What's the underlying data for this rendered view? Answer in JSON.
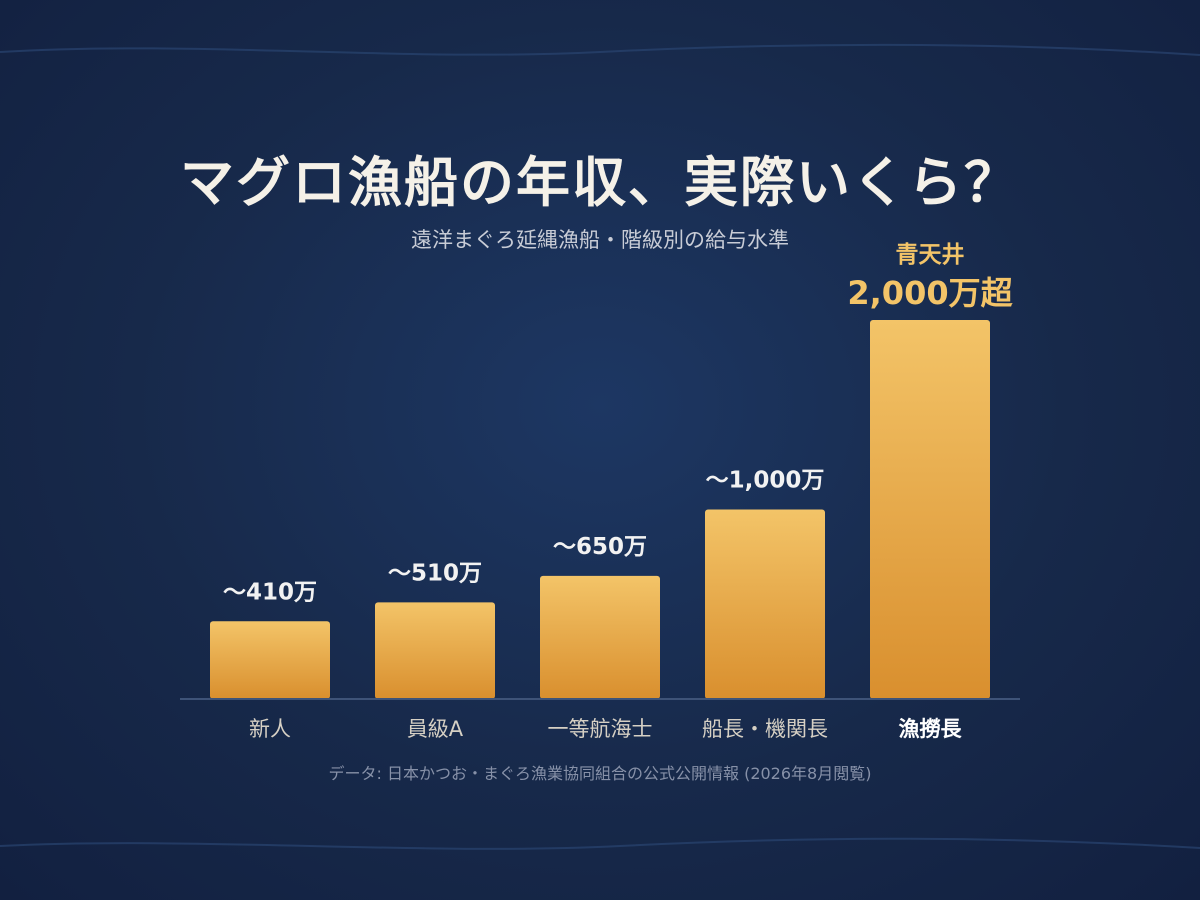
{
  "title": "マグロ漁船の年収、実際いくら？",
  "subtitle": "遠洋まぐろ延縄漁船・階級別の給与水準",
  "footnote": "データ: 日本かつお・まぐろ漁業協同組合の公式公開情報 (2026年8月閲覧)",
  "colors": {
    "bar_top": "#f3c468",
    "bar_bottom": "#d98f2e",
    "label": "#f2f2f2",
    "highlight": "#f3c468",
    "category": "#d6d0c4",
    "category_highlight": "#ffffff",
    "axis": "#3e5378"
  },
  "chart_data": {
    "type": "bar",
    "categories": [
      "新人",
      "員級A",
      "一等航海士",
      "船長・機関長",
      "漁撈長"
    ],
    "values": [
      410,
      510,
      650,
      1000,
      2000
    ],
    "value_labels": [
      "〜410万",
      "〜510万",
      "〜650万",
      "〜1,000万",
      "2,000万超"
    ],
    "highlight_index": 4,
    "highlight_caption": "青天井",
    "unit": "万円",
    "ylim": [
      0,
      2000
    ],
    "grid": false,
    "legend": "none"
  }
}
